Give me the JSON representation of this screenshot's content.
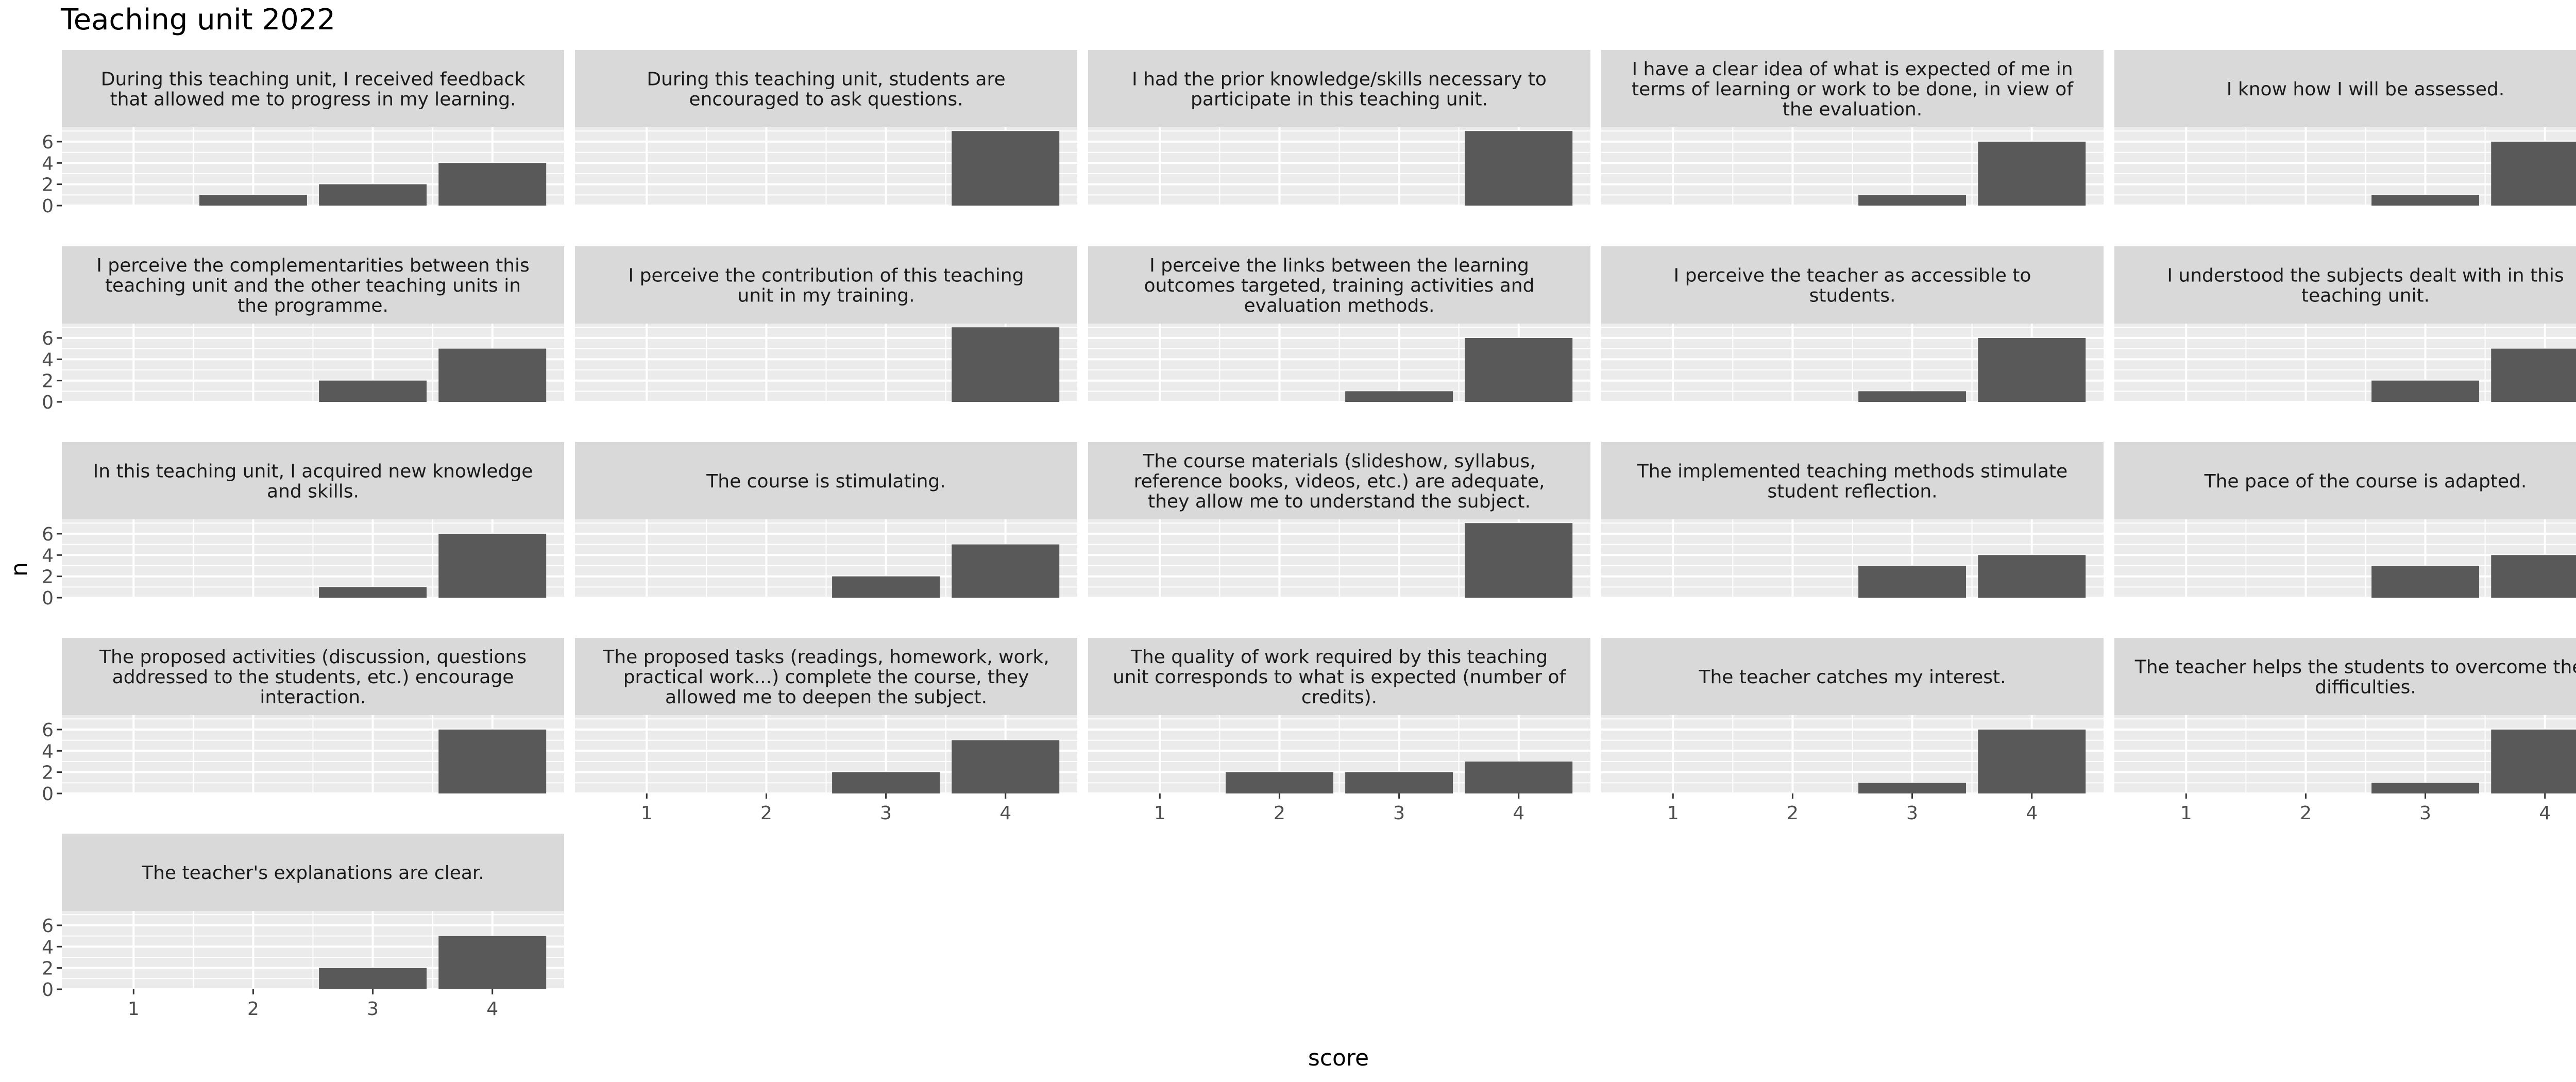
{
  "chart_data": {
    "type": "bar",
    "title": "Teaching unit 2022",
    "xlabel": "score",
    "ylabel": "n",
    "x_ticks": [
      "1",
      "2",
      "3",
      "4"
    ],
    "y_ticks": [
      0,
      2,
      4,
      6
    ],
    "ylim": [
      0,
      7.35
    ],
    "grid": true,
    "legend": "none",
    "colors": {
      "bar": "#595959",
      "panel_background": "#ebebeb",
      "strip_background": "#d9d9d9",
      "grid": "#ffffff",
      "text": "#1a1a1a",
      "tick_text": "#4d4d4d"
    },
    "categories": [
      1,
      2,
      3,
      4
    ],
    "facets": [
      {
        "title": "During this teaching unit, I received feedback that allowed me to progress in my learning.",
        "values": [
          0,
          1,
          2,
          4
        ]
      },
      {
        "title": "During this teaching unit, students are encouraged to ask questions.",
        "values": [
          0,
          0,
          0,
          7
        ]
      },
      {
        "title": "I had the prior knowledge/skills necessary to participate in this teaching unit.",
        "values": [
          0,
          0,
          0,
          7
        ]
      },
      {
        "title": "I have a clear idea of what is expected of me in terms of learning or work to be done, in view of the evaluation.",
        "values": [
          0,
          0,
          1,
          6
        ]
      },
      {
        "title": "I know how I will be assessed.",
        "values": [
          0,
          0,
          1,
          6
        ]
      },
      {
        "title": "I perceive the complementarities between this teaching unit and the other teaching units in the programme.",
        "values": [
          0,
          0,
          2,
          5
        ]
      },
      {
        "title": "I perceive the contribution of this teaching unit in my training.",
        "values": [
          0,
          0,
          0,
          7
        ]
      },
      {
        "title": "I perceive the links between the learning outcomes targeted, training activities and evaluation methods.",
        "values": [
          0,
          0,
          1,
          6
        ]
      },
      {
        "title": "I perceive the teacher as accessible to students.",
        "values": [
          0,
          0,
          1,
          6
        ]
      },
      {
        "title": "I understood the subjects dealt with in this teaching unit.",
        "values": [
          0,
          0,
          2,
          5
        ]
      },
      {
        "title": "In this teaching unit, I acquired new knowledge and skills.",
        "values": [
          0,
          0,
          1,
          6
        ]
      },
      {
        "title": "The course is stimulating.",
        "values": [
          0,
          0,
          2,
          5
        ]
      },
      {
        "title": "The course materials (slideshow, syllabus, reference books, videos, etc.) are adequate, they allow me to understand the subject.",
        "values": [
          0,
          0,
          0,
          7
        ]
      },
      {
        "title": "The implemented teaching methods stimulate student reflection.",
        "values": [
          0,
          0,
          3,
          4
        ]
      },
      {
        "title": "The pace of the course is adapted.",
        "values": [
          0,
          0,
          3,
          4
        ]
      },
      {
        "title": "The proposed activities (discussion, questions addressed to the students, etc.) encourage interaction.",
        "values": [
          0,
          0,
          0,
          6
        ]
      },
      {
        "title": "The proposed tasks (readings, homework, work, practical work...) complete the course, they allowed me to deepen the subject.",
        "values": [
          0,
          0,
          2,
          5
        ]
      },
      {
        "title": "The quality of work required by this teaching unit corresponds to what is expected (number of credits).",
        "values": [
          0,
          2,
          2,
          3
        ]
      },
      {
        "title": "The teacher catches my interest.",
        "values": [
          0,
          0,
          1,
          6
        ]
      },
      {
        "title": "The teacher helps the students to overcome their difficulties.",
        "values": [
          0,
          0,
          1,
          6
        ]
      },
      {
        "title": "The teacher's explanations are clear.",
        "values": [
          0,
          0,
          2,
          5
        ]
      }
    ]
  }
}
